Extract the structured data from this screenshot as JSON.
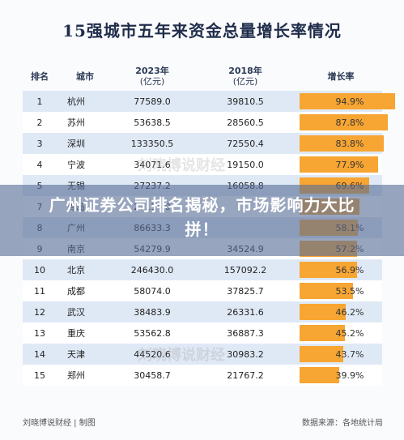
{
  "title": "15强城市五年来资金总量增长率情况",
  "headers": {
    "rank": "排名",
    "city": "城市",
    "y2023": "2023年",
    "y2023_unit": "(亿元)",
    "y2018": "2018年",
    "y2018_unit": "(亿元)",
    "growth": "增长率"
  },
  "chart_data": {
    "type": "table",
    "columns": [
      "排名",
      "城市",
      "2023年(亿元)",
      "2018年(亿元)",
      "增长率"
    ],
    "rows": [
      {
        "rank": "1",
        "city": "杭州",
        "v2023": "77589.0",
        "v2018": "39810.5",
        "growth": 94.9,
        "growth_label": "94.9%"
      },
      {
        "rank": "2",
        "city": "苏州",
        "v2023": "53638.5",
        "v2018": "28560.5",
        "growth": 87.8,
        "growth_label": "87.8%"
      },
      {
        "rank": "3",
        "city": "深圳",
        "v2023": "133350.5",
        "v2018": "72550.4",
        "growth": 83.8,
        "growth_label": "83.8%"
      },
      {
        "rank": "4",
        "city": "宁波",
        "v2023": "34071.6",
        "v2018": "19150.0",
        "growth": 77.9,
        "growth_label": "77.9%"
      },
      {
        "rank": "5",
        "city": "无锡",
        "v2023": "27237.2",
        "v2018": "16058.8",
        "growth": 69.6,
        "growth_label": "69.6%"
      },
      {
        "rank": "7",
        "city": "青岛",
        "v2023": "27114.0",
        "v2018": "",
        "growth": 60.0,
        "growth_label": ""
      },
      {
        "rank": "8",
        "city": "广州",
        "v2023": "86633.3",
        "v2018": "",
        "growth": 58.1,
        "growth_label": "58.1%"
      },
      {
        "rank": "9",
        "city": "南京",
        "v2023": "54279.9",
        "v2018": "34524.9",
        "growth": 57.2,
        "growth_label": "57.2%"
      },
      {
        "rank": "10",
        "city": "北京",
        "v2023": "246430.0",
        "v2018": "157092.2",
        "growth": 56.9,
        "growth_label": "56.9%"
      },
      {
        "rank": "11",
        "city": "成都",
        "v2023": "58074.0",
        "v2018": "37825.7",
        "growth": 53.5,
        "growth_label": "53.5%"
      },
      {
        "rank": "12",
        "city": "武汉",
        "v2023": "38483.9",
        "v2018": "26331.6",
        "growth": 46.2,
        "growth_label": "46.2%"
      },
      {
        "rank": "13",
        "city": "重庆",
        "v2023": "53562.8",
        "v2018": "36887.3",
        "growth": 45.2,
        "growth_label": "45.2%"
      },
      {
        "rank": "14",
        "city": "天津",
        "v2023": "44520.6",
        "v2018": "30983.2",
        "growth": 43.7,
        "growth_label": "43.7%"
      },
      {
        "rank": "15",
        "city": "郑州",
        "v2023": "30458.7",
        "v2018": "21767.2",
        "growth": 39.9,
        "growth_label": "39.9%"
      }
    ],
    "bar_color": "#f7a533",
    "growth_max": 100
  },
  "banner_text": "广州证券公司排名揭秘，市场影响力大比拼！",
  "watermarks": [
    "刘晓博说财经",
    "刘晓博说财经"
  ],
  "footer": {
    "left": "刘晓博说财经 | 制图",
    "right": "数据来源：各地统计局"
  },
  "colors": {
    "title": "#1f2d4a",
    "row_stripe": "#dfe9f6",
    "banner": "#586e96"
  }
}
